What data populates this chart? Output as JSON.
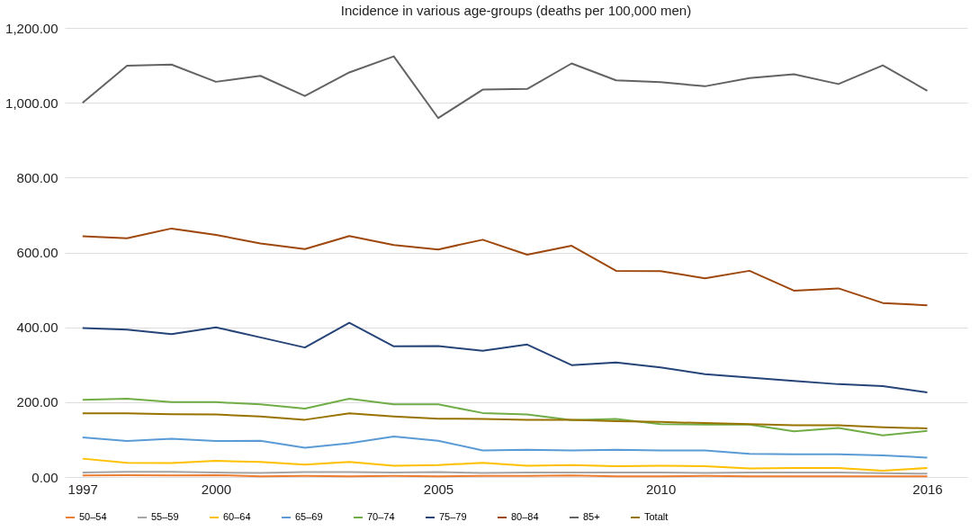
{
  "chart_data": {
    "type": "line",
    "title": "Incidence in various age-groups (deaths per 100,000 men)",
    "x": [
      1997,
      1998,
      1999,
      2000,
      2001,
      2002,
      2003,
      2004,
      2005,
      2006,
      2007,
      2008,
      2009,
      2010,
      2011,
      2012,
      2013,
      2014,
      2015,
      2016
    ],
    "xlim": [
      1996.6,
      2016.9
    ],
    "xticks": [
      1997,
      2000,
      2005,
      2010,
      2016
    ],
    "ylim": [
      0,
      1200
    ],
    "yticks": [
      {
        "value": 0,
        "label": "0.00"
      },
      {
        "value": 200,
        "label": "200.00"
      },
      {
        "value": 400,
        "label": "400.00"
      },
      {
        "value": 600,
        "label": "600.00"
      },
      {
        "value": 800,
        "label": "800.00"
      },
      {
        "value": 1000,
        "label": "1,000.00"
      },
      {
        "value": 1200,
        "label": "1,200.00"
      }
    ],
    "grid": "y",
    "legend": "bottom",
    "marker": "none",
    "line_style": "solid",
    "series": [
      {
        "name": "50–54",
        "color": "#ed7d31",
        "values": [
          4,
          5,
          4,
          5,
          2,
          3,
          2,
          3,
          2,
          3,
          3,
          4,
          2,
          2,
          3,
          2,
          2,
          2,
          2,
          2
        ]
      },
      {
        "name": "55–59",
        "color": "#a5a5a5",
        "values": [
          12,
          14,
          14,
          12,
          11,
          13,
          13,
          12,
          13,
          11,
          12,
          12,
          12,
          12,
          11,
          12,
          12,
          12,
          10,
          9
        ]
      },
      {
        "name": "60–64",
        "color": "#ffc000",
        "values": [
          49,
          38,
          37,
          43,
          40,
          33,
          40,
          30,
          32,
          38,
          30,
          32,
          29,
          30,
          29,
          23,
          24,
          24,
          17,
          24
        ]
      },
      {
        "name": "65–69",
        "color": "#5b9bd5",
        "values": [
          106,
          96,
          102,
          96,
          97,
          78,
          90,
          108,
          97,
          71,
          73,
          71,
          73,
          71,
          71,
          62,
          61,
          61,
          58,
          52
        ]
      },
      {
        "name": "70–74",
        "color": "#70ad47",
        "values": [
          206,
          209,
          200,
          200,
          194,
          183,
          209,
          194,
          194,
          171,
          167,
          152,
          155,
          141,
          140,
          140,
          122,
          131,
          111,
          123
        ]
      },
      {
        "name": "75–79",
        "color": "#264478",
        "values": [
          398,
          394,
          382,
          400,
          373,
          346,
          412,
          349,
          350,
          337,
          354,
          299,
          306,
          293,
          275,
          266,
          257,
          248,
          243,
          226
        ]
      },
      {
        "name": "80–84",
        "color": "#9e480e",
        "values": [
          643,
          638,
          664,
          647,
          624,
          609,
          644,
          620,
          608,
          634,
          594,
          618,
          551,
          550,
          531,
          551,
          498,
          504,
          465,
          459
        ]
      },
      {
        "name": "85+",
        "color": "#636363",
        "values": [
          1000,
          1099,
          1102,
          1056,
          1072,
          1018,
          1081,
          1124,
          959,
          1035,
          1037,
          1105,
          1060,
          1055,
          1044,
          1066,
          1076,
          1050,
          1100,
          1032
        ]
      },
      {
        "name": "Totalt",
        "color": "#997300",
        "values": [
          170,
          170,
          168,
          167,
          162,
          153,
          170,
          162,
          156,
          155,
          153,
          153,
          149,
          147,
          144,
          141,
          138,
          138,
          133,
          130
        ]
      }
    ]
  }
}
